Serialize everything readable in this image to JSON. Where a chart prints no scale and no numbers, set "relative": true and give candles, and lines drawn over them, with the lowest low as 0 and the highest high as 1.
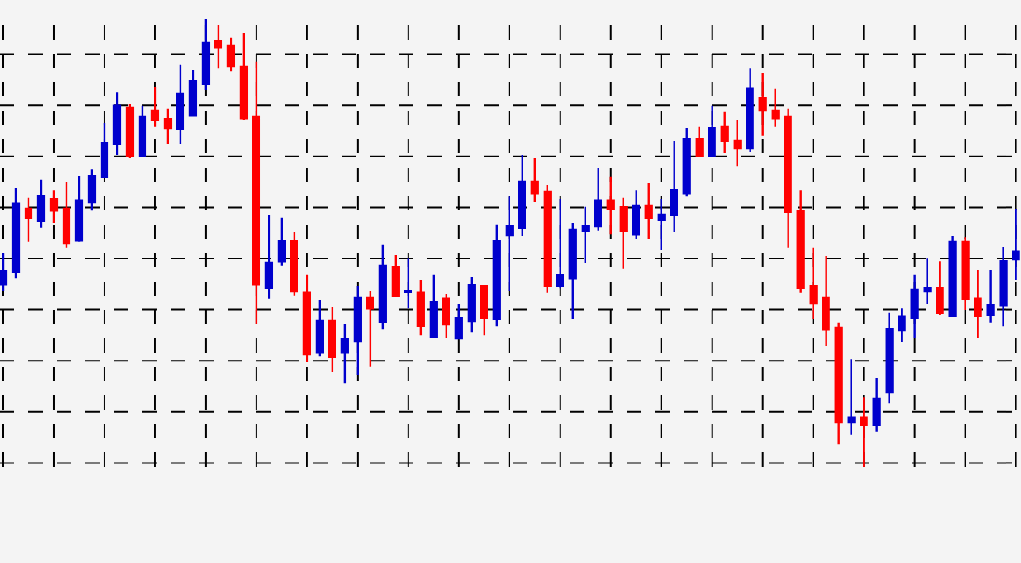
{
  "chart_data": {
    "type": "candlestick",
    "relative": true,
    "grid": true,
    "categories": [
      null,
      null,
      null,
      null,
      null,
      null,
      null,
      null,
      null,
      null,
      null,
      null,
      null,
      null,
      null,
      null,
      null,
      null,
      null,
      null,
      null,
      null,
      null,
      null,
      null,
      null,
      null,
      null,
      null,
      null,
      null,
      null,
      null,
      null,
      null,
      null,
      null,
      null,
      null,
      null,
      null,
      null,
      null,
      null,
      null,
      null,
      null,
      null,
      null,
      null,
      null,
      null,
      null,
      null,
      null,
      null,
      null,
      null,
      null,
      null,
      null,
      null,
      null,
      null,
      null,
      null,
      null,
      null,
      null,
      null,
      null,
      null,
      null,
      null,
      null,
      null,
      null,
      null,
      null,
      null,
      null
    ],
    "ohlc": [
      [
        0.406,
        0.477,
        0.392,
        0.438
      ],
      [
        0.435,
        0.622,
        0.42,
        0.587
      ],
      [
        0.576,
        0.601,
        0.502,
        0.555
      ],
      [
        0.548,
        0.64,
        0.534,
        0.604
      ],
      [
        0.597,
        0.618,
        0.544,
        0.572
      ],
      [
        0.576,
        0.636,
        0.488,
        0.498
      ],
      [
        0.505,
        0.65,
        0.502,
        0.594
      ],
      [
        0.59,
        0.664,
        0.572,
        0.65
      ],
      [
        0.647,
        0.767,
        0.647,
        0.724
      ],
      [
        0.721,
        0.837,
        0.696,
        0.806
      ],
      [
        0.802,
        0.809,
        0.689,
        0.693
      ],
      [
        0.693,
        0.806,
        0.693,
        0.781
      ],
      [
        0.795,
        0.848,
        0.76,
        0.774
      ],
      [
        0.777,
        0.799,
        0.721,
        0.756
      ],
      [
        0.753,
        0.898,
        0.721,
        0.834
      ],
      [
        0.784,
        0.887,
        0.784,
        0.862
      ],
      [
        0.855,
        1,
        0.841,
        0.947
      ],
      [
        0.951,
        0.986,
        0.89,
        0.936
      ],
      [
        0.94,
        0.958,
        0.883,
        0.894
      ],
      [
        0.894,
        0.968,
        0.774,
        0.777
      ],
      [
        0.781,
        0.905,
        0.318,
        0.406
      ],
      [
        0.399,
        0.562,
        0.375,
        0.456
      ],
      [
        0.459,
        0.555,
        0.449,
        0.505
      ],
      [
        0.505,
        0.523,
        0.382,
        0.392
      ],
      [
        0.389,
        0.428,
        0.233,
        0.251
      ],
      [
        0.254,
        0.371,
        0.247,
        0.325
      ],
      [
        0.325,
        0.357,
        0.212,
        0.244
      ],
      [
        0.254,
        0.318,
        0.187,
        0.286
      ],
      [
        0.279,
        0.403,
        0.205,
        0.378
      ],
      [
        0.378,
        0.392,
        0.223,
        0.353
      ],
      [
        0.322,
        0.495,
        0.307,
        0.449
      ],
      [
        0.445,
        0.473,
        0.378,
        0.382
      ],
      [
        0.39,
        0.466,
        0.353,
        0.392
      ],
      [
        0.389,
        0.417,
        0.293,
        0.314
      ],
      [
        0.29,
        0.428,
        0.29,
        0.367
      ],
      [
        0.375,
        0.385,
        0.286,
        0.318
      ],
      [
        0.286,
        0.364,
        0.286,
        0.332
      ],
      [
        0.325,
        0.424,
        0.3,
        0.406
      ],
      [
        0.403,
        0.403,
        0.293,
        0.332
      ],
      [
        0.329,
        0.541,
        0.314,
        0.505
      ],
      [
        0.516,
        0.604,
        0.392,
        0.537
      ],
      [
        0.534,
        0.696,
        0.516,
        0.636
      ],
      [
        0.636,
        0.689,
        0.59,
        0.611
      ],
      [
        0.615,
        0.629,
        0.389,
        0.403
      ],
      [
        0.403,
        0.597,
        0.399,
        0.428
      ],
      [
        0.42,
        0.544,
        0.329,
        0.53
      ],
      [
        0.527,
        0.58,
        0.456,
        0.537
      ],
      [
        0.537,
        0.668,
        0.527,
        0.594
      ],
      [
        0.594,
        0.647,
        0.519,
        0.576
      ],
      [
        0.58,
        0.601,
        0.442,
        0.527
      ],
      [
        0.519,
        0.618,
        0.509,
        0.583
      ],
      [
        0.583,
        0.633,
        0.509,
        0.555
      ],
      [
        0.551,
        0.597,
        0.484,
        0.562
      ],
      [
        0.562,
        0.728,
        0.523,
        0.618
      ],
      [
        0.611,
        0.756,
        0.604,
        0.731
      ],
      [
        0.731,
        0.76,
        0.693,
        0.693
      ],
      [
        0.693,
        0.806,
        0.693,
        0.756
      ],
      [
        0.76,
        0.792,
        0.7,
        0.728
      ],
      [
        0.728,
        0.774,
        0.671,
        0.71
      ],
      [
        0.71,
        0.89,
        0.703,
        0.845
      ],
      [
        0.823,
        0.88,
        0.739,
        0.795
      ],
      [
        0.795,
        0.845,
        0.76,
        0.777
      ],
      [
        0.781,
        0.799,
        0.488,
        0.569
      ],
      [
        0.572,
        0.618,
        0.389,
        0.399
      ],
      [
        0.403,
        0.488,
        0.329,
        0.364
      ],
      [
        0.378,
        0.47,
        0.269,
        0.307
      ],
      [
        0.311,
        0.322,
        0.049,
        0.099
      ],
      [
        0.099,
        0.24,
        0.071,
        0.11
      ],
      [
        0.11,
        0.155,
        0,
        0.092
      ],
      [
        0.092,
        0.198,
        0.078,
        0.152
      ],
      [
        0.166,
        0.343,
        0.141,
        0.307
      ],
      [
        0.304,
        0.353,
        0.279,
        0.336
      ],
      [
        0.332,
        0.428,
        0.286,
        0.396
      ],
      [
        0.392,
        0.466,
        0.364,
        0.399
      ],
      [
        0.399,
        0.459,
        0.339,
        0.343
      ],
      [
        0.336,
        0.516,
        0.336,
        0.502
      ],
      [
        0.502,
        0.512,
        0.35,
        0.375
      ],
      [
        0.375,
        0.438,
        0.286,
        0.336
      ],
      [
        0.339,
        0.438,
        0.322,
        0.36
      ],
      [
        0.36,
        0.491,
        0.314,
        0.459
      ],
      [
        0.463,
        0.576,
        0.417,
        0.481
      ]
    ],
    "colors": [
      "#0000cd",
      "#0000cd",
      "#ff0000",
      "#0000cd",
      "#ff0000",
      "#ff0000",
      "#0000cd",
      "#0000cd",
      "#0000cd",
      "#0000cd",
      "#ff0000",
      "#0000cd",
      "#ff0000",
      "#ff0000",
      "#0000cd",
      "#0000cd",
      "#0000cd",
      "#ff0000",
      "#ff0000",
      "#ff0000",
      "#ff0000",
      "#0000cd",
      "#0000cd",
      "#ff0000",
      "#ff0000",
      "#0000cd",
      "#ff0000",
      "#0000cd",
      "#0000cd",
      "#ff0000",
      "#0000cd",
      "#ff0000",
      "#0000cd",
      "#ff0000",
      "#0000cd",
      "#ff0000",
      "#0000cd",
      "#0000cd",
      "#ff0000",
      "#0000cd",
      "#0000cd",
      "#0000cd",
      "#ff0000",
      "#ff0000",
      "#0000cd",
      "#0000cd",
      "#0000cd",
      "#0000cd",
      "#ff0000",
      "#ff0000",
      "#0000cd",
      "#ff0000",
      "#0000cd",
      "#0000cd",
      "#0000cd",
      "#ff0000",
      "#0000cd",
      "#ff0000",
      "#ff0000",
      "#0000cd",
      "#ff0000",
      "#ff0000",
      "#ff0000",
      "#ff0000",
      "#ff0000",
      "#ff0000",
      "#ff0000",
      "#0000cd",
      "#ff0000",
      "#0000cd",
      "#0000cd",
      "#0000cd",
      "#0000cd",
      "#0000cd",
      "#ff0000",
      "#0000cd",
      "#ff0000",
      "#ff0000",
      "#0000cd",
      "#0000cd",
      "#0000cd"
    ]
  }
}
